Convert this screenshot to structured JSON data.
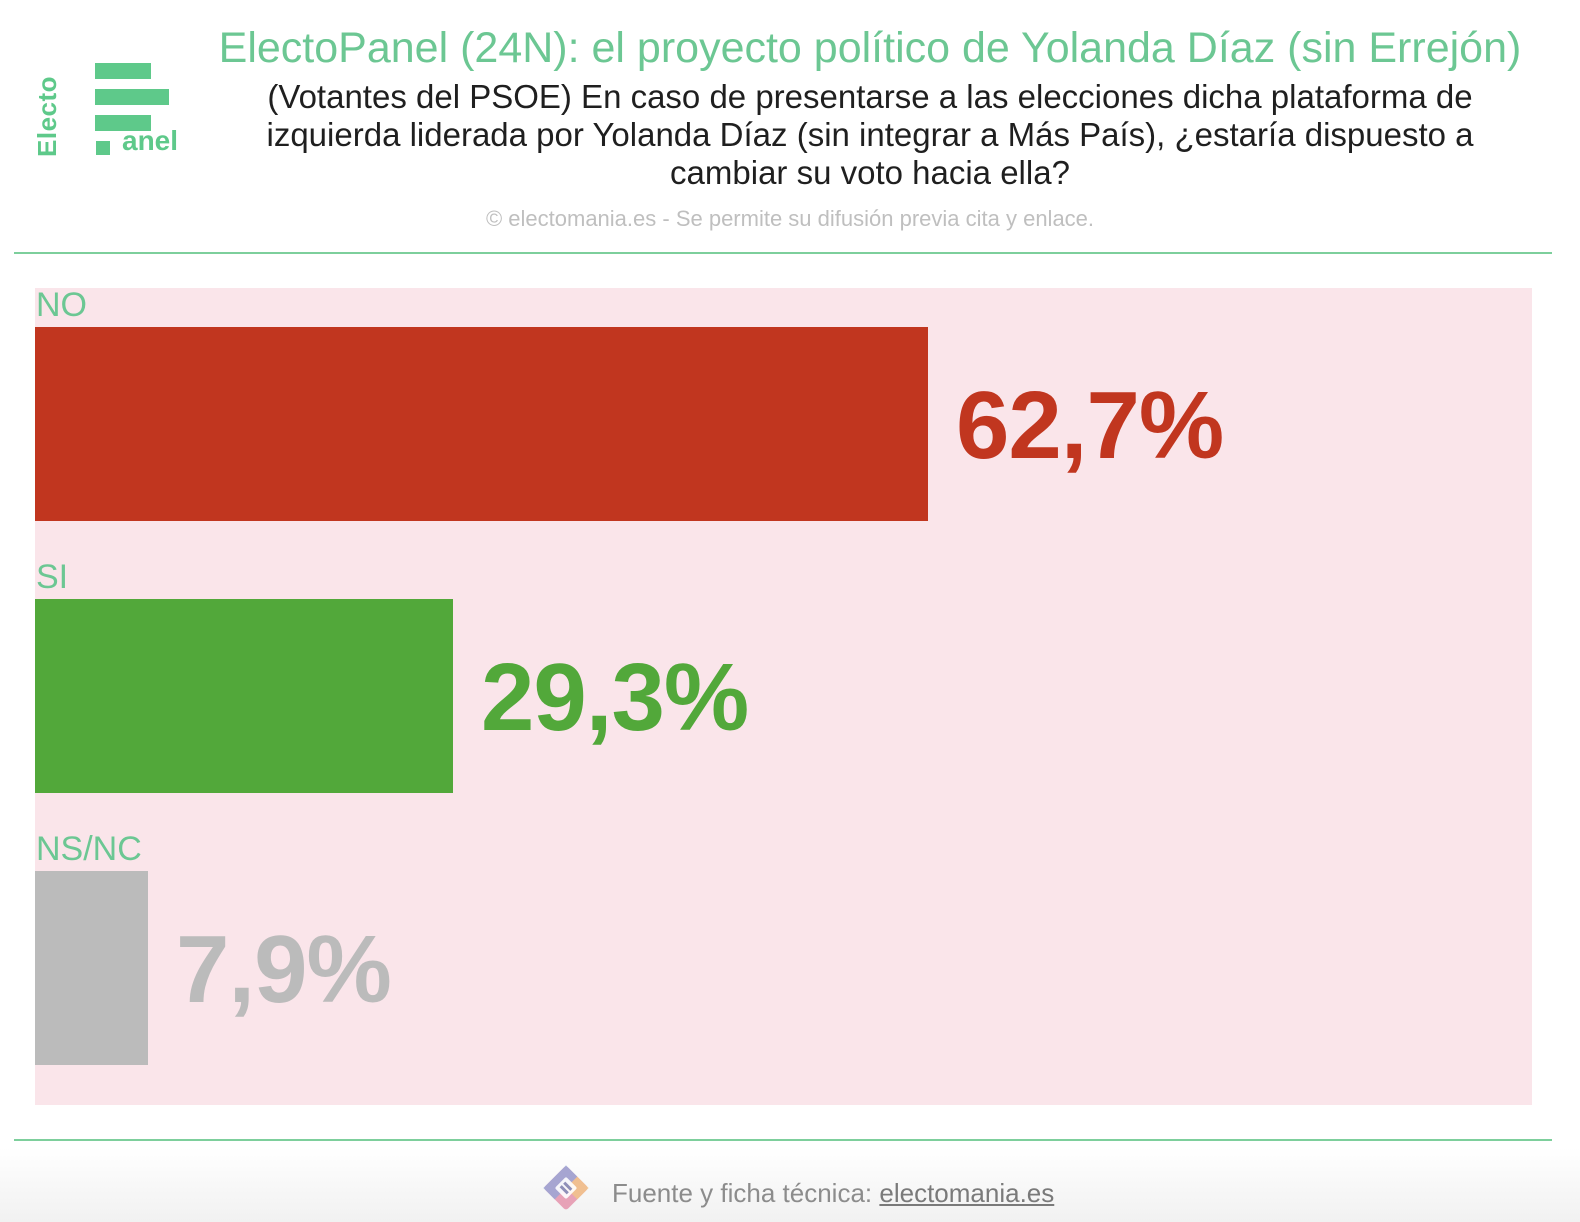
{
  "header": {
    "title": "ElectoPanel (24N): el proyecto político de Yolanda Díaz (sin Errejón)",
    "subtitle": "(Votantes del PSOE) En caso de presentarse a las elecciones dicha plataforma de izquierda liderada por Yolanda Díaz (sin integrar a Más País), ¿estaría dispuesto a cambiar su voto hacia ella?",
    "credit": "© electomania.es - Se permite su difusión previa cita y enlace."
  },
  "logo": {
    "vertical_text": "Electo",
    "suffix_text": "anel",
    "color": "#5ec98a"
  },
  "footer": {
    "source_label": "Fuente y ficha técnica:",
    "link_text": "electomania.es",
    "icon": "electomania-logo-icon"
  },
  "colors": {
    "title": "#6cc793",
    "plot_background": "#fae5ea",
    "rule": "#7dcf9c"
  },
  "chart_data": {
    "type": "bar",
    "orientation": "horizontal",
    "categories": [
      "NO",
      "SI",
      "NS/NC"
    ],
    "values": [
      62.7,
      29.3,
      7.9
    ],
    "value_labels": [
      "62,7%",
      "29,3%",
      "7,9%"
    ],
    "colors": [
      "#c1361f",
      "#52a83a",
      "#bbbbbb"
    ],
    "title": "ElectoPanel (24N): el proyecto político de Yolanda Díaz (sin Errejón)",
    "xlabel": "",
    "ylabel": "",
    "xlim": [
      0,
      100
    ],
    "grid": false,
    "legend": "none"
  }
}
